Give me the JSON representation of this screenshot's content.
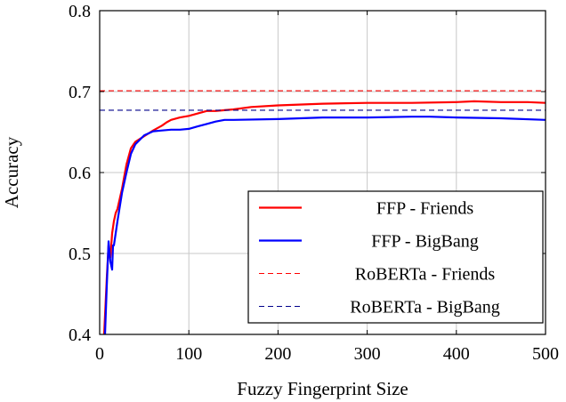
{
  "chart_data": {
    "type": "line",
    "title": "",
    "xlabel": "Fuzzy Fingerprint Size",
    "ylabel": "Accuracy",
    "xlim": [
      0,
      500
    ],
    "ylim": [
      0.4,
      0.8
    ],
    "x_ticks": [
      0,
      100,
      200,
      300,
      400,
      500
    ],
    "y_ticks": [
      0.4,
      0.5,
      0.6,
      0.7,
      0.8
    ],
    "x_tick_labels": [
      "0",
      "100",
      "200",
      "300",
      "400",
      "500"
    ],
    "y_tick_labels": [
      "0.4",
      "0.5",
      "0.6",
      "0.7",
      "0.8"
    ],
    "grid": true,
    "legend_position": "bottom-right",
    "series": [
      {
        "name": "FFP - Friends",
        "style": "solid",
        "color": "#ff0000",
        "x": [
          5,
          8,
          10,
          12,
          14,
          16,
          18,
          20,
          25,
          30,
          35,
          40,
          50,
          60,
          70,
          75,
          80,
          90,
          100,
          110,
          120,
          130,
          140,
          150,
          170,
          200,
          250,
          300,
          350,
          400,
          420,
          450,
          480,
          500
        ],
        "y": [
          0.4,
          0.47,
          0.51,
          0.495,
          0.525,
          0.54,
          0.55,
          0.555,
          0.58,
          0.61,
          0.63,
          0.638,
          0.645,
          0.652,
          0.658,
          0.662,
          0.665,
          0.668,
          0.67,
          0.673,
          0.676,
          0.676,
          0.677,
          0.678,
          0.681,
          0.683,
          0.685,
          0.686,
          0.686,
          0.687,
          0.688,
          0.687,
          0.687,
          0.686
        ]
      },
      {
        "name": "FFP - BigBang",
        "style": "solid",
        "color": "#0000ff",
        "x": [
          6,
          8,
          10,
          12,
          14,
          15,
          16,
          18,
          20,
          25,
          30,
          35,
          40,
          50,
          60,
          70,
          80,
          90,
          100,
          110,
          120,
          130,
          140,
          150,
          200,
          250,
          300,
          350,
          370,
          400,
          450,
          500
        ],
        "y": [
          0.4,
          0.46,
          0.515,
          0.49,
          0.48,
          0.51,
          0.51,
          0.525,
          0.54,
          0.575,
          0.6,
          0.623,
          0.635,
          0.646,
          0.651,
          0.652,
          0.653,
          0.653,
          0.654,
          0.657,
          0.66,
          0.663,
          0.665,
          0.665,
          0.666,
          0.668,
          0.668,
          0.669,
          0.669,
          0.668,
          0.667,
          0.665
        ]
      },
      {
        "name": "RoBERTa - Friends",
        "style": "dashed",
        "color": "#ff0000",
        "x": [
          0,
          500
        ],
        "y": [
          0.701,
          0.701
        ]
      },
      {
        "name": "RoBERTa - BigBang",
        "style": "dashed",
        "color": "#00008b",
        "x": [
          0,
          500
        ],
        "y": [
          0.677,
          0.677
        ]
      }
    ]
  }
}
